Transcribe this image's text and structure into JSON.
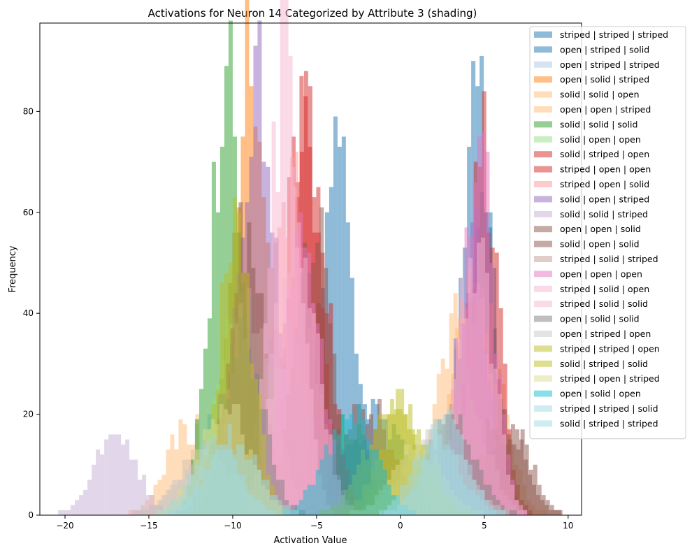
{
  "chart_data": {
    "type": "histogram",
    "title": "Activations for Neuron 14 Categorized by Attribute 3 (shading)",
    "xlabel": "Activation Value",
    "ylabel": "Frequency",
    "xlim": [
      -21.5,
      10.8
    ],
    "ylim": [
      0,
      97.5
    ],
    "xticks": [
      -20,
      -15,
      -10,
      -5,
      0,
      5,
      10
    ],
    "yticks": [
      0,
      20,
      40,
      60,
      80
    ],
    "grid": false,
    "legend_position": "upper right, partly outside plot",
    "series": [
      {
        "name": "striped | striped | striped",
        "color": "#1f77b4",
        "alpha": 0.5,
        "clusters": [
          {
            "center": -3.8,
            "sd": 1.0,
            "peak": 75
          },
          {
            "center": 4.6,
            "sd": 0.9,
            "peak": 82
          }
        ]
      },
      {
        "name": "open | striped | solid",
        "color": "#1f77b4",
        "alpha": 0.5,
        "clusters": [
          {
            "center": -1.5,
            "sd": 1.8,
            "peak": 20
          },
          {
            "center": 4.8,
            "sd": 0.8,
            "peak": 65
          }
        ]
      },
      {
        "name": "open | striped | striped",
        "color": "#aec7e8",
        "alpha": 0.5,
        "clusters": [
          {
            "center": -11.0,
            "sd": 1.8,
            "peak": 18
          },
          {
            "center": 3.0,
            "sd": 1.5,
            "peak": 20
          }
        ]
      },
      {
        "name": "open | solid | striped",
        "color": "#ff7f0e",
        "alpha": 0.5,
        "clusters": [
          {
            "center": -9.0,
            "sd": 1.1,
            "peak": 90
          }
        ]
      },
      {
        "name": "solid | solid | open",
        "color": "#ffbb78",
        "alpha": 0.5,
        "clusters": [
          {
            "center": -12.5,
            "sd": 1.4,
            "peak": 18
          },
          {
            "center": 3.5,
            "sd": 1.2,
            "peak": 40
          }
        ]
      },
      {
        "name": "open | open | striped",
        "color": "#ffbb78",
        "alpha": 0.5,
        "clusters": [
          {
            "center": -8.0,
            "sd": 1.6,
            "peak": 25
          },
          {
            "center": 4.5,
            "sd": 1.4,
            "peak": 45
          }
        ]
      },
      {
        "name": "solid | solid | solid",
        "color": "#2ca02c",
        "alpha": 0.5,
        "clusters": [
          {
            "center": -10.3,
            "sd": 1.0,
            "peak": 84
          },
          {
            "center": -3.0,
            "sd": 1.2,
            "peak": 18
          }
        ]
      },
      {
        "name": "solid | open | open",
        "color": "#98df8a",
        "alpha": 0.5,
        "clusters": [
          {
            "center": -9.5,
            "sd": 1.4,
            "peak": 40
          },
          {
            "center": 0.5,
            "sd": 1.5,
            "peak": 12
          }
        ]
      },
      {
        "name": "solid | striped | open",
        "color": "#d62728",
        "alpha": 0.5,
        "clusters": [
          {
            "center": -5.8,
            "sd": 1.0,
            "peak": 80
          },
          {
            "center": 5.0,
            "sd": 0.9,
            "peak": 70
          }
        ]
      },
      {
        "name": "striped | open | open",
        "color": "#d62728",
        "alpha": 0.5,
        "clusters": [
          {
            "center": -5.5,
            "sd": 1.1,
            "peak": 78
          }
        ]
      },
      {
        "name": "striped | open | solid",
        "color": "#ff9896",
        "alpha": 0.5,
        "clusters": [
          {
            "center": -6.5,
            "sd": 1.2,
            "peak": 65
          },
          {
            "center": 4.2,
            "sd": 1.0,
            "peak": 48
          }
        ]
      },
      {
        "name": "solid | open | striped",
        "color": "#9467bd",
        "alpha": 0.5,
        "clusters": [
          {
            "center": -8.5,
            "sd": 1.1,
            "peak": 82
          },
          {
            "center": 4.3,
            "sd": 0.9,
            "peak": 55
          }
        ]
      },
      {
        "name": "solid | solid | striped",
        "color": "#c5b0d5",
        "alpha": 0.5,
        "clusters": [
          {
            "center": -17.0,
            "sd": 1.3,
            "peak": 16
          },
          {
            "center": -7.0,
            "sd": 1.5,
            "peak": 35
          }
        ]
      },
      {
        "name": "open | open | solid",
        "color": "#8c564b",
        "alpha": 0.5,
        "clusters": [
          {
            "center": -9.2,
            "sd": 1.0,
            "peak": 58
          },
          {
            "center": -2.0,
            "sd": 1.6,
            "peak": 22
          },
          {
            "center": 6.5,
            "sd": 1.2,
            "peak": 18
          }
        ]
      },
      {
        "name": "solid | open | solid",
        "color": "#8c564b",
        "alpha": 0.5,
        "clusters": [
          {
            "center": -5.3,
            "sd": 1.1,
            "peak": 60
          },
          {
            "center": 6.0,
            "sd": 1.3,
            "peak": 20
          }
        ]
      },
      {
        "name": "striped | solid | striped",
        "color": "#c49c94",
        "alpha": 0.5,
        "clusters": [
          {
            "center": -8.8,
            "sd": 1.2,
            "peak": 45
          },
          {
            "center": 3.8,
            "sd": 1.3,
            "peak": 25
          }
        ]
      },
      {
        "name": "open | open | open",
        "color": "#e377c2",
        "alpha": 0.5,
        "clusters": [
          {
            "center": -5.8,
            "sd": 1.1,
            "peak": 55
          },
          {
            "center": 4.7,
            "sd": 0.9,
            "peak": 70
          }
        ]
      },
      {
        "name": "striped | solid | open",
        "color": "#f7b6d2",
        "alpha": 0.5,
        "clusters": [
          {
            "center": -6.8,
            "sd": 0.9,
            "peak": 93
          }
        ]
      },
      {
        "name": "striped | solid | solid",
        "color": "#f7b6d2",
        "alpha": 0.5,
        "clusters": [
          {
            "center": -6.2,
            "sd": 1.2,
            "peak": 60
          },
          {
            "center": 4.5,
            "sd": 1.0,
            "peak": 55
          }
        ]
      },
      {
        "name": "open | solid | solid",
        "color": "#7f7f7f",
        "alpha": 0.5,
        "clusters": [
          {
            "center": -9.5,
            "sd": 1.3,
            "peak": 35
          },
          {
            "center": 3.0,
            "sd": 1.5,
            "peak": 18
          }
        ]
      },
      {
        "name": "open | striped | open",
        "color": "#c7c7c7",
        "alpha": 0.5,
        "clusters": [
          {
            "center": -11.5,
            "sd": 1.6,
            "peak": 14
          },
          {
            "center": 2.0,
            "sd": 1.8,
            "peak": 16
          }
        ]
      },
      {
        "name": "striped | striped | open",
        "color": "#bcbd22",
        "alpha": 0.5,
        "clusters": [
          {
            "center": -9.8,
            "sd": 1.0,
            "peak": 55
          },
          {
            "center": 0.2,
            "sd": 1.4,
            "peak": 22
          }
        ]
      },
      {
        "name": "solid | striped | solid",
        "color": "#bcbd22",
        "alpha": 0.5,
        "clusters": [
          {
            "center": -0.5,
            "sd": 1.6,
            "peak": 20
          }
        ]
      },
      {
        "name": "striped | open | striped",
        "color": "#dbdb8d",
        "alpha": 0.5,
        "clusters": [
          {
            "center": -10.5,
            "sd": 1.5,
            "peak": 22
          },
          {
            "center": 1.0,
            "sd": 1.5,
            "peak": 14
          }
        ]
      },
      {
        "name": "open | solid | open",
        "color": "#17becf",
        "alpha": 0.5,
        "clusters": [
          {
            "center": -3.0,
            "sd": 1.5,
            "peak": 20
          }
        ]
      },
      {
        "name": "striped | striped | solid",
        "color": "#9edae5",
        "alpha": 0.5,
        "clusters": [
          {
            "center": -10.0,
            "sd": 1.5,
            "peak": 15
          },
          {
            "center": 2.7,
            "sd": 1.3,
            "peak": 19
          }
        ]
      },
      {
        "name": "solid | striped | striped",
        "color": "#9edae5",
        "alpha": 0.5,
        "clusters": [
          {
            "center": -11.0,
            "sd": 1.4,
            "peak": 14
          },
          {
            "center": 2.2,
            "sd": 1.4,
            "peak": 15
          }
        ]
      }
    ]
  }
}
